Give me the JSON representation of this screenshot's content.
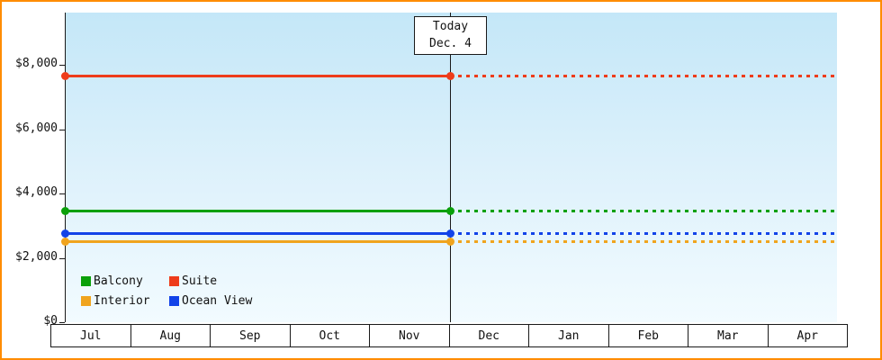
{
  "chart_data": {
    "type": "line",
    "description": "Cabin price history with solid lines up to today and dotted projection after today",
    "x_categories": [
      "Jul",
      "Aug",
      "Sep",
      "Oct",
      "Nov",
      "Dec",
      "Jan",
      "Feb",
      "Mar",
      "Apr"
    ],
    "y_ticks": [
      {
        "value": 0,
        "label": "$0"
      },
      {
        "value": 2000,
        "label": "$2,000"
      },
      {
        "value": 4000,
        "label": "$4,000"
      },
      {
        "value": 6000,
        "label": "$6,000"
      },
      {
        "value": 8000,
        "label": "$8,000"
      }
    ],
    "ylim": [
      0,
      9600
    ],
    "grid": false,
    "today": {
      "label": "Today",
      "date": "Dec. 4"
    },
    "series": [
      {
        "name": "Balcony",
        "color": "#0aa00a",
        "value": 3450
      },
      {
        "name": "Suite",
        "color": "#ee3c1b",
        "value": 7650
      },
      {
        "name": "Interior",
        "color": "#f0a41e",
        "value": 2500
      },
      {
        "name": "Ocean View",
        "color": "#1243e8",
        "value": 2750
      }
    ],
    "legend_position": "bottom-left",
    "frame_color": "#ff8c00"
  }
}
